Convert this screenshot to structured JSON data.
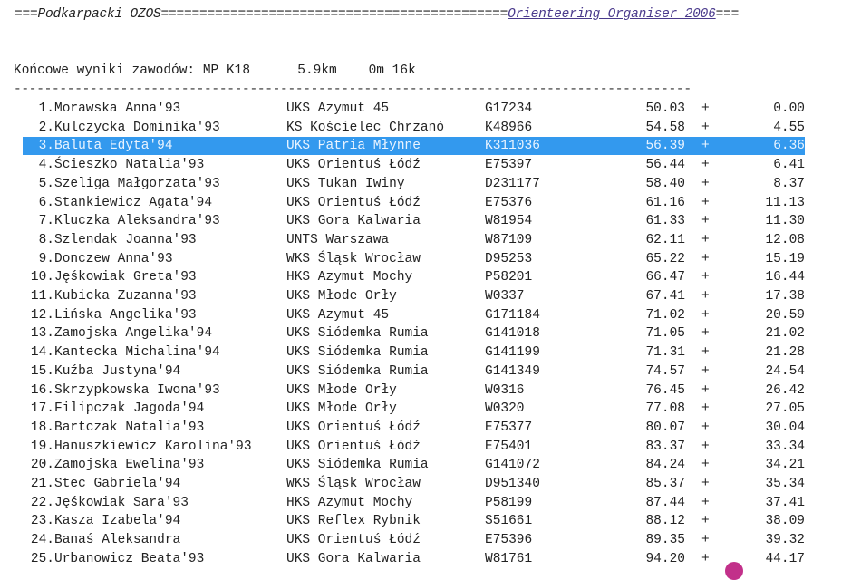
{
  "header": {
    "left": "===Podkarpacki OZOS=============================================",
    "link": "Orienteering Organiser 2006",
    "right": "==="
  },
  "title": "Końcowe wyniki zawodów: MP K18      5.9km    0m 16k",
  "separator": "-----------------------------------------------------------------------------------------",
  "selected_index": 2,
  "colors": {
    "selection": "#3399ee",
    "link": "#4a3a8c"
  },
  "rows": [
    {
      "rank": "1.",
      "name": "Morawska Anna'93",
      "club": "UKS Azymut 45",
      "code": "G17234",
      "time": "50.03",
      "diff": "0.00"
    },
    {
      "rank": "2.",
      "name": "Kulczycka Dominika'93",
      "club": "KS Kościelec Chrzanó",
      "code": "K48966",
      "time": "54.58",
      "diff": "4.55"
    },
    {
      "rank": "3.",
      "name": "Baluta Edyta'94",
      "club": "UKS Patria Młynne",
      "code": "K311036",
      "time": "56.39",
      "diff": "6.36"
    },
    {
      "rank": "4.",
      "name": "Ścieszko Natalia'93",
      "club": "UKS Orientuś Łódź",
      "code": "E75397",
      "time": "56.44",
      "diff": "6.41"
    },
    {
      "rank": "5.",
      "name": "Szeliga Małgorzata'93",
      "club": "UKS Tukan Iwiny",
      "code": "D231177",
      "time": "58.40",
      "diff": "8.37"
    },
    {
      "rank": "6.",
      "name": "Stankiewicz Agata'94",
      "club": "UKS Orientuś Łódź",
      "code": "E75376",
      "time": "61.16",
      "diff": "11.13"
    },
    {
      "rank": "7.",
      "name": "Kluczka Aleksandra'93",
      "club": "UKS Gora Kalwaria",
      "code": "W81954",
      "time": "61.33",
      "diff": "11.30"
    },
    {
      "rank": "8.",
      "name": "Szlendak Joanna'93",
      "club": "UNTS Warszawa",
      "code": "W87109",
      "time": "62.11",
      "diff": "12.08"
    },
    {
      "rank": "9.",
      "name": "Donczew Anna'93",
      "club": "WKS Śląsk Wrocław",
      "code": "D95253",
      "time": "65.22",
      "diff": "15.19"
    },
    {
      "rank": "10.",
      "name": "Jęśkowiak Greta'93",
      "club": "HKS Azymut Mochy",
      "code": "P58201",
      "time": "66.47",
      "diff": "16.44"
    },
    {
      "rank": "11.",
      "name": "Kubicka Zuzanna'93",
      "club": "UKS Młode Orły",
      "code": "W0337",
      "time": "67.41",
      "diff": "17.38"
    },
    {
      "rank": "12.",
      "name": "Lińska Angelika'93",
      "club": "UKS Azymut 45",
      "code": "G171184",
      "time": "71.02",
      "diff": "20.59"
    },
    {
      "rank": "13.",
      "name": "Zamojska Angelika'94",
      "club": "UKS Siódemka Rumia",
      "code": "G141018",
      "time": "71.05",
      "diff": "21.02"
    },
    {
      "rank": "14.",
      "name": "Kantecka Michalina'94",
      "club": "UKS Siódemka Rumia",
      "code": "G141199",
      "time": "71.31",
      "diff": "21.28"
    },
    {
      "rank": "15.",
      "name": "Kuźba Justyna'94",
      "club": "UKS Siódemka Rumia",
      "code": "G141349",
      "time": "74.57",
      "diff": "24.54"
    },
    {
      "rank": "16.",
      "name": "Skrzypkowska Iwona'93",
      "club": "UKS Młode Orły",
      "code": "W0316",
      "time": "76.45",
      "diff": "26.42"
    },
    {
      "rank": "17.",
      "name": "Filipczak Jagoda'94",
      "club": "UKS Młode Orły",
      "code": "W0320",
      "time": "77.08",
      "diff": "27.05"
    },
    {
      "rank": "18.",
      "name": "Bartczak Natalia'93",
      "club": "UKS Orientuś Łódź",
      "code": "E75377",
      "time": "80.07",
      "diff": "30.04"
    },
    {
      "rank": "19.",
      "name": "Hanuszkiewicz Karolina'93",
      "club": "UKS Orientuś Łódź",
      "code": "E75401",
      "time": "83.37",
      "diff": "33.34"
    },
    {
      "rank": "20.",
      "name": "Zamojska Ewelina'93",
      "club": "UKS Siódemka Rumia",
      "code": "G141072",
      "time": "84.24",
      "diff": "34.21"
    },
    {
      "rank": "21.",
      "name": "Stec Gabriela'94",
      "club": "WKS Śląsk Wrocław",
      "code": "D951340",
      "time": "85.37",
      "diff": "35.34"
    },
    {
      "rank": "22.",
      "name": "Jęśkowiak Sara'93",
      "club": "HKS Azymut Mochy",
      "code": "P58199",
      "time": "87.44",
      "diff": "37.41"
    },
    {
      "rank": "23.",
      "name": "Kasza Izabela'94",
      "club": "UKS Reflex Rybnik",
      "code": "S51661",
      "time": "88.12",
      "diff": "38.09"
    },
    {
      "rank": "24.",
      "name": "Banaś Aleksandra",
      "club": "UKS Orientuś Łódź",
      "code": "E75396",
      "time": "89.35",
      "diff": "39.32"
    },
    {
      "rank": "25.",
      "name": "Urbanowicz Beata'93",
      "club": "UKS Gora Kalwaria",
      "code": "W81761",
      "time": "94.20",
      "diff": "44.17"
    }
  ],
  "plus_sign": "+"
}
